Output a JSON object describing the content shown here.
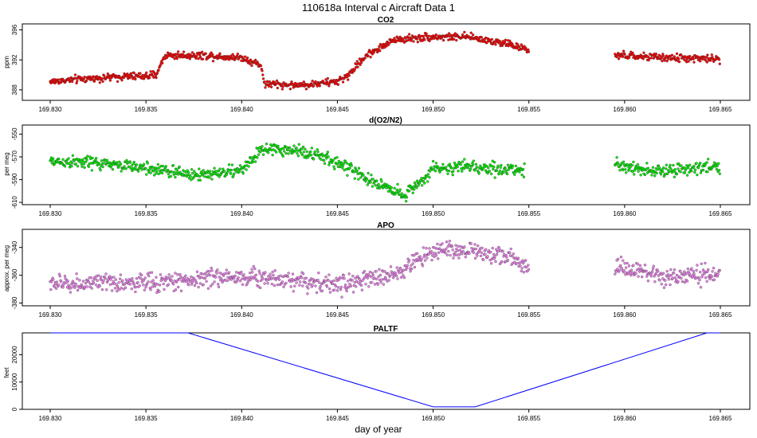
{
  "figure": {
    "title": "110618a   Interval c Aircraft Data 1",
    "xlabel": "day of year"
  },
  "chart_data": [
    {
      "type": "scatter",
      "title": "CO2",
      "ylabel": "ppm",
      "color": "#ff0000",
      "xlim": [
        169.83,
        169.865
      ],
      "xticks": [
        169.83,
        169.835,
        169.84,
        169.845,
        169.85,
        169.855,
        169.86,
        169.865
      ],
      "xtick_labels": [
        "169.830",
        "169.835",
        "169.840",
        "169.845",
        "169.850",
        "169.855",
        "169.860",
        "169.865"
      ],
      "ylim": [
        386.6,
        396.8
      ],
      "yticks": [
        388,
        392,
        396
      ],
      "ytick_labels": [
        "388",
        "392",
        "396"
      ],
      "trend": [
        [
          169.83,
          389.1
        ],
        [
          169.832,
          389.5
        ],
        [
          169.834,
          389.8
        ],
        [
          169.8355,
          389.9
        ],
        [
          169.836,
          392.6
        ],
        [
          169.838,
          392.6
        ],
        [
          169.84,
          392.3
        ],
        [
          169.841,
          391.3
        ],
        [
          169.8412,
          388.8
        ],
        [
          169.843,
          388.6
        ],
        [
          169.845,
          389.1
        ],
        [
          169.8455,
          389.8
        ],
        [
          169.8465,
          392.6
        ],
        [
          169.848,
          394.7
        ],
        [
          169.85,
          395.1
        ],
        [
          169.852,
          395.0
        ],
        [
          169.854,
          394.1
        ],
        [
          169.855,
          393.2
        ],
        null,
        [
          169.8595,
          392.6
        ],
        [
          169.862,
          392.3
        ],
        [
          169.865,
          392.1
        ]
      ],
      "noise": 0.45
    },
    {
      "type": "scatter",
      "title": "d(O2/N2)",
      "ylabel": "per meg",
      "color": "#00ee00",
      "xlim": [
        169.83,
        169.865
      ],
      "xticks": [
        169.83,
        169.835,
        169.84,
        169.845,
        169.85,
        169.855,
        169.86,
        169.865
      ],
      "xtick_labels": [
        "169.830",
        "169.835",
        "169.840",
        "169.845",
        "169.850",
        "169.855",
        "169.860",
        "169.865"
      ],
      "ylim": [
        -612,
        -542
      ],
      "yticks": [
        -550,
        -570,
        -590,
        -610
      ],
      "ytick_labels": [
        "-550",
        "-570",
        "-590",
        "-610"
      ],
      "trend": [
        [
          169.83,
          -574
        ],
        [
          169.832,
          -575
        ],
        [
          169.834,
          -578
        ],
        [
          169.836,
          -582
        ],
        [
          169.8375,
          -586
        ],
        [
          169.84,
          -582
        ],
        [
          169.841,
          -564
        ],
        [
          169.843,
          -564
        ],
        [
          169.845,
          -575
        ],
        [
          169.847,
          -593
        ],
        [
          169.8485,
          -603
        ],
        [
          169.8495,
          -590
        ],
        [
          169.85,
          -580
        ],
        [
          169.852,
          -579
        ],
        [
          169.8548,
          -582
        ],
        null,
        [
          169.8595,
          -577
        ],
        [
          169.862,
          -583
        ],
        [
          169.865,
          -578
        ]
      ],
      "noise": 5
    },
    {
      "type": "scatter",
      "title": "APO",
      "ylabel": "approx. per meg",
      "color": "#ee82ee",
      "xlim": [
        169.83,
        169.865
      ],
      "xticks": [
        169.83,
        169.835,
        169.84,
        169.845,
        169.85,
        169.855,
        169.86,
        169.865
      ],
      "xtick_labels": [
        "169.830",
        "169.835",
        "169.840",
        "169.845",
        "169.850",
        "169.855",
        "169.860",
        "169.865"
      ],
      "ylim": [
        -382,
        -327
      ],
      "yticks": [
        -340,
        -360,
        -380
      ],
      "ytick_labels": [
        "-340",
        "-360",
        "-380"
      ],
      "trend": [
        [
          169.83,
          -366
        ],
        [
          169.833,
          -366
        ],
        [
          169.836,
          -365
        ],
        [
          169.839,
          -361
        ],
        [
          169.842,
          -362
        ],
        [
          169.845,
          -367
        ],
        [
          169.848,
          -360
        ],
        [
          169.849,
          -350
        ],
        [
          169.85,
          -342
        ],
        [
          169.852,
          -342
        ],
        [
          169.854,
          -347
        ],
        [
          169.855,
          -355
        ],
        null,
        [
          169.8595,
          -354
        ],
        [
          169.862,
          -362
        ],
        [
          169.865,
          -359
        ]
      ],
      "noise": 6
    },
    {
      "type": "line",
      "title": "PALTF",
      "ylabel": "feet",
      "color": "#0000ff",
      "xlim": [
        169.83,
        169.865
      ],
      "xticks": [
        169.83,
        169.835,
        169.84,
        169.845,
        169.85,
        169.855,
        169.86,
        169.865
      ],
      "xtick_labels": [
        "169.830",
        "169.835",
        "169.840",
        "169.845",
        "169.850",
        "169.855",
        "169.860",
        "169.865"
      ],
      "ylim": [
        0,
        28000
      ],
      "yticks": [
        0,
        10000,
        20000
      ],
      "ytick_labels": [
        "0",
        "10000",
        "20000"
      ],
      "x": [
        169.83,
        169.8372,
        169.85,
        169.8522,
        169.8643,
        169.865
      ],
      "y": [
        28000,
        28000,
        900,
        900,
        28000,
        28000
      ]
    }
  ]
}
